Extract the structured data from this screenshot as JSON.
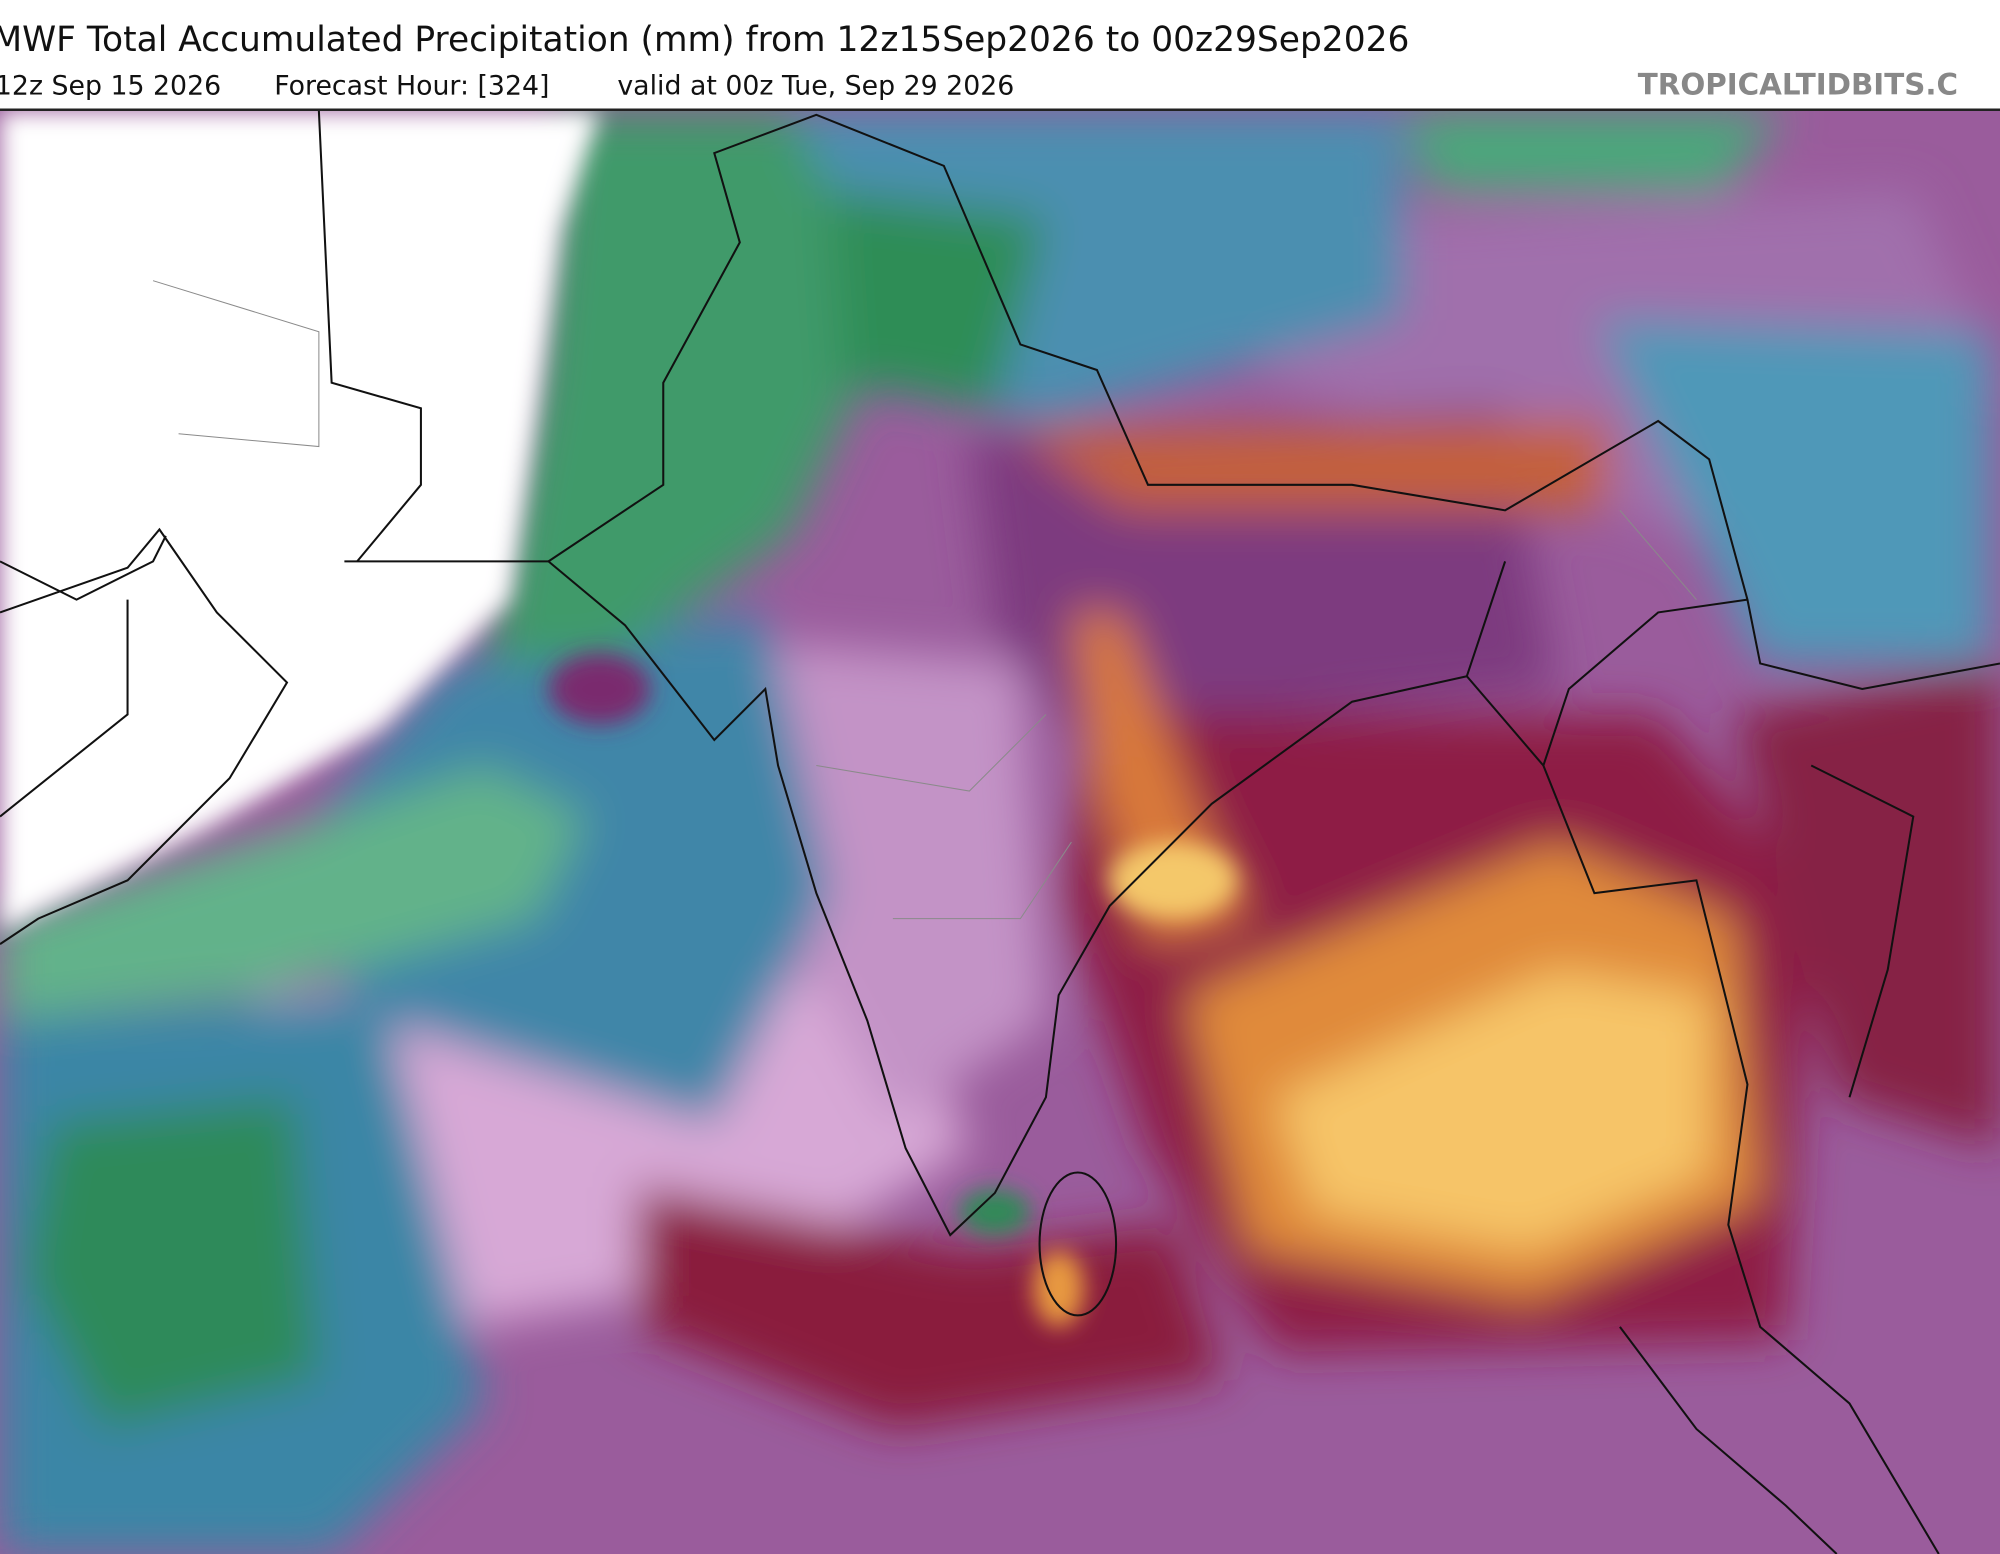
{
  "header": {
    "title": "MWF Total Accumulated Precipitation (mm) from 12z15Sep2026 to 00z29Sep2026",
    "run": "12z Sep 15 2026",
    "forecast_hour": "Forecast Hour: [324]",
    "valid": "valid at 00z Tue, Sep 29 2026",
    "watermark": "TROPICALTIDBITS.C"
  }
}
